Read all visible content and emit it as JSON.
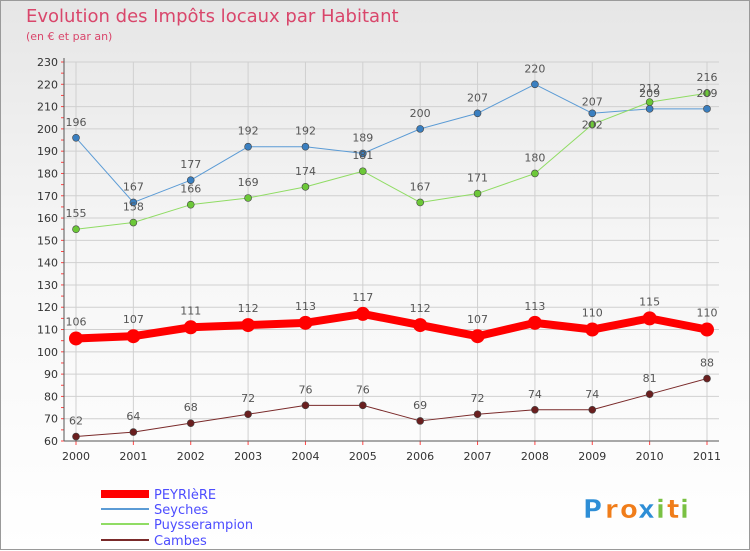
{
  "chart_data": {
    "type": "line",
    "title": "Evolution des Impôts locaux par Habitant",
    "subtitle": "(en € et par an)",
    "x": [
      "2000",
      "2001",
      "2002",
      "2003",
      "2004",
      "2005",
      "2006",
      "2007",
      "2008",
      "2009",
      "2010",
      "2011"
    ],
    "ylim": [
      60,
      230
    ],
    "yticks": [
      60,
      70,
      80,
      90,
      100,
      110,
      120,
      130,
      140,
      150,
      160,
      170,
      180,
      190,
      200,
      210,
      220,
      230
    ],
    "grid": true,
    "legend_position": "bottom-left",
    "series": [
      {
        "name": "Seyches",
        "color": "#5b9bd5",
        "point_color": "#3a7fc0",
        "width": 1,
        "values": [
          196,
          167,
          177,
          192,
          192,
          189,
          200,
          207,
          220,
          207,
          209,
          209
        ]
      },
      {
        "name": "Puysserampion",
        "color": "#90dc64",
        "point_color": "#6cc838",
        "width": 1,
        "values": [
          155,
          158,
          166,
          169,
          174,
          181,
          167,
          171,
          180,
          202,
          212,
          216
        ]
      },
      {
        "name": "Cambes",
        "color": "#7a2a2a",
        "point_color": "#6a1f1f",
        "width": 1,
        "values": [
          62,
          64,
          68,
          72,
          76,
          76,
          69,
          72,
          74,
          74,
          81,
          88
        ]
      },
      {
        "name": "PEYRIèRE",
        "color": "#ff0000",
        "point_color": "#ff0000",
        "width": 8,
        "values": [
          106,
          107,
          111,
          112,
          113,
          117,
          112,
          107,
          113,
          110,
          115,
          110
        ]
      }
    ],
    "legend_order": [
      "PEYRIèRE",
      "Seyches",
      "Puysserampion",
      "Cambes"
    ]
  },
  "logo": {
    "text": "Proxiti",
    "letters": [
      "P",
      "r",
      "o",
      "x",
      "i",
      "t",
      "i"
    ]
  }
}
